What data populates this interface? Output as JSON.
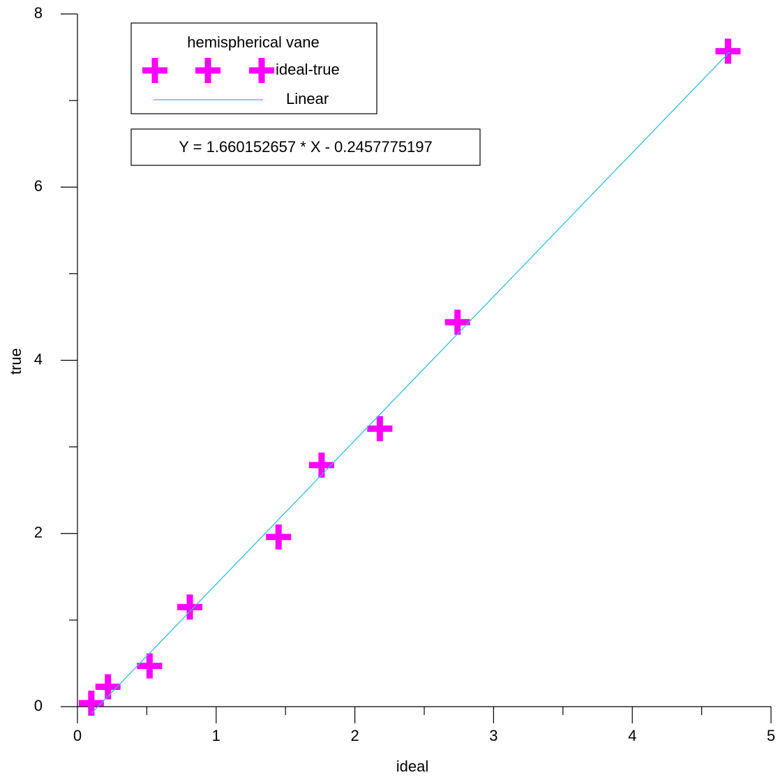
{
  "chart_data": {
    "type": "scatter",
    "xlabel": "ideal",
    "ylabel": "true",
    "x": [
      0.1,
      0.22,
      0.52,
      0.81,
      1.45,
      1.76,
      2.18,
      2.74,
      4.69
    ],
    "series": [
      {
        "name": "ideal-true",
        "color": "#ff00ff",
        "values": [
          0.04,
          0.23,
          0.47,
          1.15,
          1.96,
          2.79,
          3.21,
          4.44,
          7.57
        ]
      },
      {
        "name": "Linear",
        "color": "#33bbdd",
        "x": [
          0.1,
          4.7
        ],
        "values": [
          -0.08,
          7.56
        ]
      }
    ],
    "legend_title": "hemispherical vane",
    "annotation": "Y = 1.660152657 * X - 0.2457775197",
    "xlim": [
      0,
      5
    ],
    "xticks": [
      0,
      1,
      2,
      3,
      4,
      5
    ],
    "xminor": [
      0.5,
      1.5,
      2.5,
      3.5,
      4.5
    ],
    "ylim": [
      0,
      8
    ],
    "yticks": [
      0,
      2,
      4,
      6,
      8
    ],
    "yminor": [
      1,
      3,
      5,
      7
    ],
    "grid": false,
    "legend": "upper left"
  }
}
